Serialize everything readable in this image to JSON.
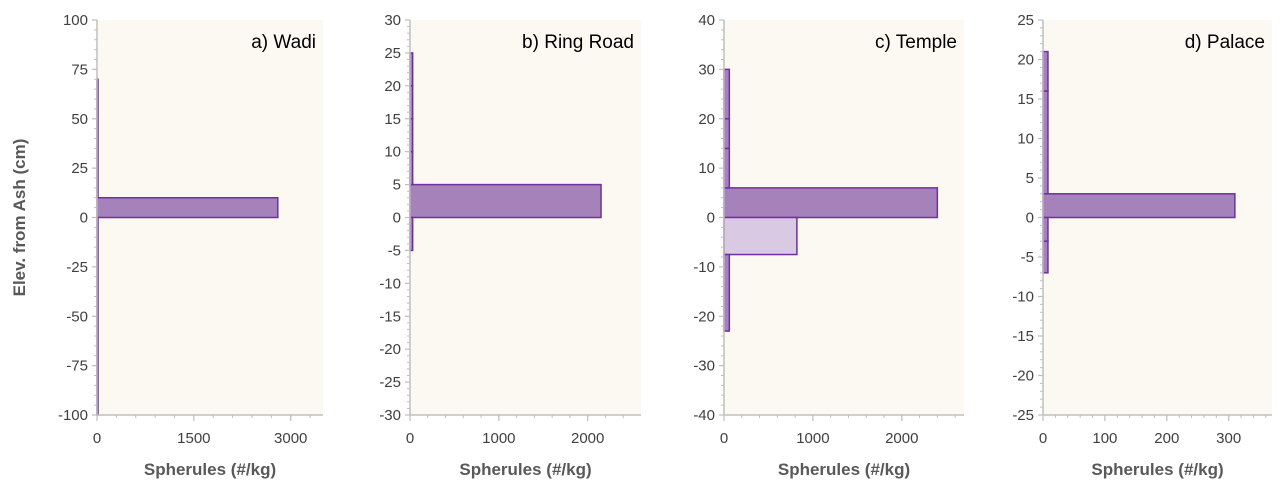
{
  "colors": {
    "plot_bg": "#fcf8f2",
    "axis": "#bfbfbf",
    "bar_fill": "#a682bb",
    "bar_fill_light": "#d9c9e2",
    "bar_stroke": "#7030a0"
  },
  "chart_data": [
    {
      "type": "bar",
      "orientation": "horizontal",
      "title": "a)  Wadi",
      "xlabel": "Spherules (#/kg)",
      "ylabel": "Elev. from Ash (cm)",
      "xlim": [
        0,
        3500
      ],
      "ylim": [
        -100,
        100
      ],
      "xticks": [
        0,
        1500,
        3000
      ],
      "xtick_labels": [
        "0",
        "1500",
        "3000"
      ],
      "yticks": [
        100,
        75,
        50,
        25,
        0,
        -25,
        -50,
        -75,
        -100
      ],
      "ytick_labels": [
        "100",
        "75",
        "50",
        "25",
        "0",
        "-25",
        "-50",
        "-75",
        "-100"
      ],
      "bars": [
        {
          "y_from": 0,
          "y_to": 10,
          "value": 2800,
          "shade": "dark"
        },
        {
          "y_from": 10,
          "y_to": 70,
          "value": 10,
          "shade": "dark"
        },
        {
          "y_from": -100,
          "y_to": 0,
          "value": 10,
          "shade": "dark"
        }
      ]
    },
    {
      "type": "bar",
      "orientation": "horizontal",
      "title": "b) Ring Road",
      "xlabel": "Spherules (#/kg)",
      "ylabel": "",
      "xlim": [
        0,
        2600
      ],
      "ylim": [
        -30,
        30
      ],
      "xticks": [
        0,
        1000,
        2000
      ],
      "xtick_labels": [
        "0",
        "1000",
        "2000"
      ],
      "yticks": [
        30,
        25,
        20,
        15,
        10,
        5,
        0,
        -5,
        -10,
        -15,
        -20,
        -25,
        -30
      ],
      "ytick_labels": [
        "30",
        "25",
        "20",
        "15",
        "10",
        "5",
        "0",
        "-5",
        "-10",
        "-15",
        "-20",
        "-25",
        "-30"
      ],
      "bars": [
        {
          "y_from": 0,
          "y_to": 5,
          "value": 2150,
          "shade": "dark"
        },
        {
          "y_from": 5,
          "y_to": 10,
          "value": 30,
          "shade": "dark"
        },
        {
          "y_from": 10,
          "y_to": 15,
          "value": 30,
          "shade": "dark"
        },
        {
          "y_from": 15,
          "y_to": 20,
          "value": 30,
          "shade": "dark"
        },
        {
          "y_from": 20,
          "y_to": 25,
          "value": 30,
          "shade": "dark"
        },
        {
          "y_from": -5,
          "y_to": 0,
          "value": 30,
          "shade": "dark"
        }
      ]
    },
    {
      "type": "bar",
      "orientation": "horizontal",
      "title": "c)  Temple",
      "xlabel": "Spherules (#/kg)",
      "ylabel": "",
      "xlim": [
        0,
        2700
      ],
      "ylim": [
        -40,
        40
      ],
      "xticks": [
        0,
        1000,
        2000
      ],
      "xtick_labels": [
        "0",
        "1000",
        "2000"
      ],
      "yticks": [
        40,
        30,
        20,
        10,
        0,
        -10,
        -20,
        -30,
        -40
      ],
      "ytick_labels": [
        "40",
        "30",
        "20",
        "10",
        "0",
        "-10",
        "-20",
        "-30",
        "-40"
      ],
      "bars": [
        {
          "y_from": 0,
          "y_to": 6,
          "value": 2400,
          "shade": "dark"
        },
        {
          "y_from": -7.5,
          "y_to": 0,
          "value": 820,
          "shade": "light"
        },
        {
          "y_from": 6,
          "y_to": 14,
          "value": 60,
          "shade": "dark"
        },
        {
          "y_from": 14,
          "y_to": 20,
          "value": 60,
          "shade": "dark"
        },
        {
          "y_from": 20,
          "y_to": 30,
          "value": 60,
          "shade": "dark"
        },
        {
          "y_from": -23,
          "y_to": -7.5,
          "value": 60,
          "shade": "dark"
        }
      ]
    },
    {
      "type": "bar",
      "orientation": "horizontal",
      "title": "d)  Palace",
      "xlabel": "Spherules (#/kg)",
      "ylabel": "",
      "xlim": [
        0,
        370
      ],
      "ylim": [
        -25,
        25
      ],
      "xticks": [
        0,
        100,
        200,
        300
      ],
      "xtick_labels": [
        "0",
        "100",
        "200",
        "300"
      ],
      "yticks": [
        25,
        20,
        15,
        10,
        5,
        0,
        -5,
        -10,
        -15,
        -20,
        -25
      ],
      "ytick_labels": [
        "25",
        "20",
        "15",
        "10",
        "5",
        "0",
        "-5",
        "-10",
        "-15",
        "-20",
        "-25"
      ],
      "bars": [
        {
          "y_from": 0,
          "y_to": 3,
          "value": 310,
          "shade": "dark"
        },
        {
          "y_from": 3,
          "y_to": 16,
          "value": 8,
          "shade": "dark"
        },
        {
          "y_from": 16,
          "y_to": 21,
          "value": 8,
          "shade": "dark"
        },
        {
          "y_from": -3,
          "y_to": 0,
          "value": 8,
          "shade": "dark"
        },
        {
          "y_from": -7,
          "y_to": -3,
          "value": 8,
          "shade": "dark"
        }
      ]
    }
  ]
}
